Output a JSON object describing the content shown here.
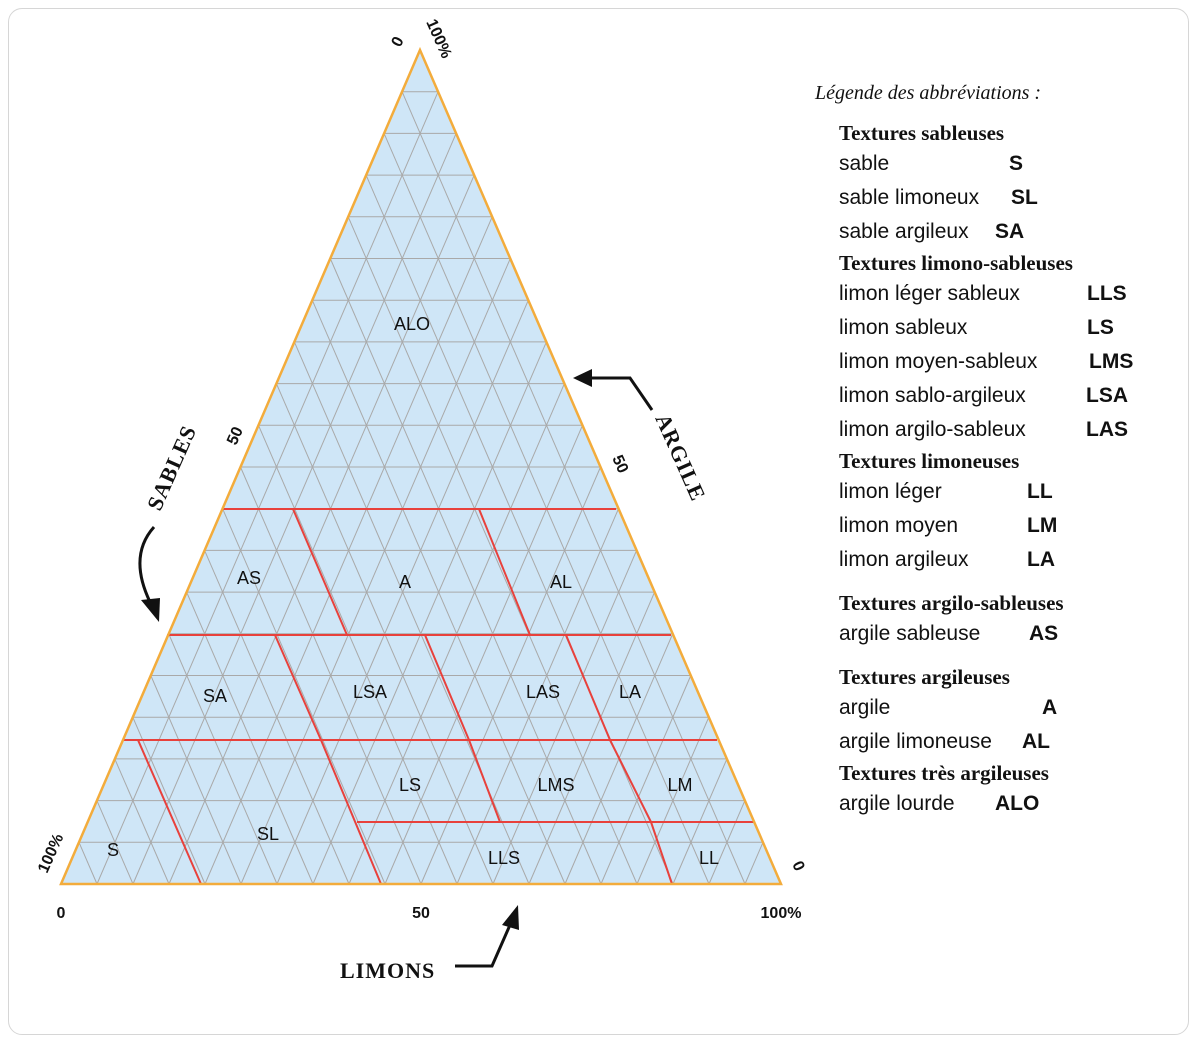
{
  "axes": {
    "top": {
      "zero": "0",
      "hundred": "100%"
    },
    "left": {
      "mid": "50",
      "hundred": "100%",
      "name": "SABLES"
    },
    "right": {
      "mid": "50",
      "zero": "0",
      "name": "ARGILE"
    },
    "bottom": {
      "zero": "0",
      "mid": "50",
      "hundred": "100%",
      "name": "LIMONS"
    }
  },
  "zones": {
    "ALO": "ALO",
    "AS": "AS",
    "A": "A",
    "AL": "AL",
    "SA": "SA",
    "LSA": "LSA",
    "LAS": "LAS",
    "LA": "LA",
    "LS": "LS",
    "LMS": "LMS",
    "LM": "LM",
    "S": "S",
    "SL": "SL",
    "LLS": "LLS",
    "LL": "LL"
  },
  "colors": {
    "fill": "#cfe6f7",
    "triangle_border": "#f3ac3c",
    "grid": "#a9a9a9",
    "zone_border": "#e8413c"
  },
  "legend": {
    "title": "Légende des abbréviations :",
    "groups": [
      {
        "title": "Textures sableuses",
        "items": [
          {
            "name": "sable",
            "abbr": "S"
          },
          {
            "name": "sable limoneux",
            "abbr": "SL"
          },
          {
            "name": "sable argileux",
            "abbr": "SA"
          }
        ]
      },
      {
        "title": "Textures limono-sableuses",
        "items": [
          {
            "name": "limon léger sableux",
            "abbr": "LLS"
          },
          {
            "name": "limon sableux",
            "abbr": "LS"
          },
          {
            "name": "limon moyen-sableux",
            "abbr": "LMS"
          },
          {
            "name": "limon sablo-argileux",
            "abbr": "LSA"
          },
          {
            "name": "limon argilo-sableux",
            "abbr": "LAS"
          }
        ]
      },
      {
        "title": "Textures limoneuses",
        "items": [
          {
            "name": "limon léger",
            "abbr": "LL"
          },
          {
            "name": "limon moyen",
            "abbr": "LM"
          },
          {
            "name": "limon argileux",
            "abbr": "LA"
          }
        ]
      },
      {
        "title": "Textures argilo-sableuses",
        "items": [
          {
            "name": "argile sableuse",
            "abbr": "AS"
          }
        ]
      },
      {
        "title": "Textures argileuses",
        "items": [
          {
            "name": "argile",
            "abbr": "A"
          },
          {
            "name": "argile limoneuse",
            "abbr": "AL"
          }
        ]
      },
      {
        "title": "Textures très argileuses",
        "items": [
          {
            "name": "argile lourde",
            "abbr": "ALO"
          }
        ]
      }
    ]
  }
}
